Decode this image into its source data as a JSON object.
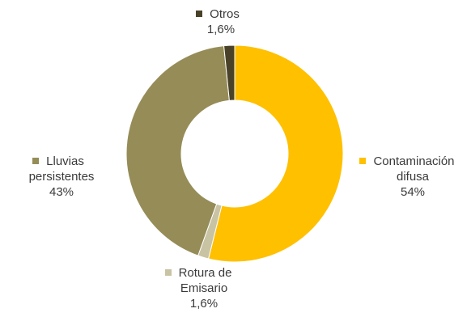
{
  "chart_data": {
    "type": "pie",
    "variant": "donut",
    "start_angle_deg": 0,
    "direction": "clockwise",
    "slices": [
      {
        "key": "contaminacion",
        "name_lines": [
          "Contaminación",
          "difusa"
        ],
        "value": 54,
        "value_label": "54%",
        "color": "#FFC000"
      },
      {
        "key": "rotura",
        "name_lines": [
          "Rotura de",
          "Emisario"
        ],
        "value": 1.6,
        "value_label": "1,6%",
        "color": "#C8C3A3"
      },
      {
        "key": "lluvias",
        "name_lines": [
          "Lluvias",
          "persistentes"
        ],
        "value": 43,
        "value_label": "43%",
        "color": "#968C58"
      },
      {
        "key": "otros",
        "name_lines": [
          "Otros"
        ],
        "value": 1.6,
        "value_label": "1,6%",
        "color": "#4A4228"
      }
    ],
    "title": "",
    "legend": "none"
  }
}
